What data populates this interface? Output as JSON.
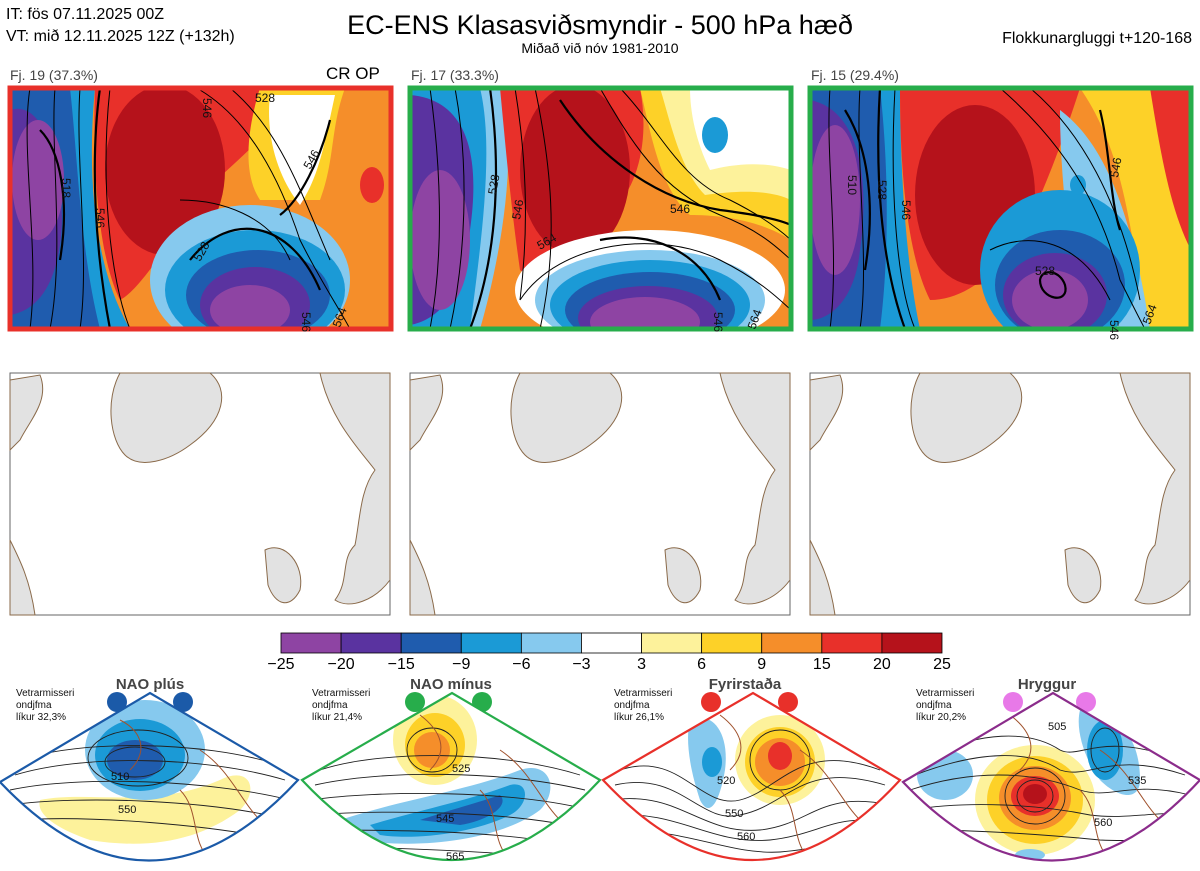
{
  "header": {
    "init_time": "IT: fös 07.11.2025 00Z",
    "valid_time": "VT: mið 12.11.2025 12Z  (+132h)",
    "title": "EC-ENS Klasasviðsmyndir - 500 hPa hæð",
    "subtitle": "Miðað við nóv 1981-2010",
    "window": "Flokkunargluggi t+120-168"
  },
  "clusters": [
    {
      "label": "Fj. 19 (37.3%)",
      "tag": "CR OP",
      "frame_color": "#e8302a",
      "contour_labels": [
        "546",
        "528",
        "518",
        "546",
        "528",
        "546",
        "546",
        "564"
      ]
    },
    {
      "label": "Fj. 17 (33.3%)",
      "tag": "",
      "frame_color": "#27ad4b",
      "contour_labels": [
        "528",
        "546",
        "546",
        "564",
        "546",
        "564"
      ]
    },
    {
      "label": "Fj. 15 (29.4%)",
      "tag": "",
      "frame_color": "#27ad4b",
      "contour_labels": [
        "510",
        "528",
        "546",
        "546",
        "528",
        "546",
        "564"
      ]
    }
  ],
  "chart_data": {
    "type": "heatmap",
    "title": "EC-ENS Klasasviðsmyndir - 500 hPa hæð",
    "colorbar": {
      "boundaries": [
        "−25",
        "−20",
        "−15",
        "−9",
        "−6",
        "−3",
        "3",
        "6",
        "9",
        "15",
        "20",
        "25"
      ],
      "colors": [
        "#8e44a3",
        "#5a33a0",
        "#1f5cae",
        "#1b9ad6",
        "#86c9ee",
        "#ffffff",
        "#fdf29b",
        "#fdd128",
        "#f58e2a",
        "#e8302a",
        "#b5121b"
      ]
    }
  },
  "regimes": [
    {
      "name": "NAO plús",
      "clim": [
        "Vetrarmisseri",
        "ondjfma",
        "líkur 32,3%"
      ],
      "color": "#1b5aa8",
      "labels": [
        "510",
        "550"
      ]
    },
    {
      "name": "NAO mínus",
      "clim": [
        "Vetrarmisseri",
        "ondjfma",
        "líkur 21,4%"
      ],
      "color": "#27ad4b",
      "labels": [
        "525",
        "545",
        "565"
      ]
    },
    {
      "name": "Fyrirstaða",
      "clim": [
        "Vetrarmisseri",
        "ondjfma",
        "líkur 26,1%"
      ],
      "color": "#e8302a",
      "labels": [
        "520",
        "550",
        "560"
      ]
    },
    {
      "name": "Hryggur",
      "clim": [
        "Vetrarmisseri",
        "ondjfma",
        "líkur 20,2%"
      ],
      "color": "#e879e8",
      "labels": [
        "505",
        "535",
        "560"
      ]
    }
  ]
}
